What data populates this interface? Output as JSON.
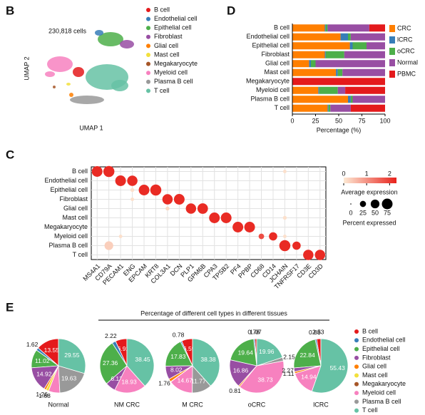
{
  "panel_labels": [
    "B",
    "C",
    "D",
    "E"
  ],
  "chart_data": [
    {
      "type": "scatter",
      "annotation": "230,818 cells",
      "xlabel": "UMAP 1",
      "ylabel": "UMAP 2",
      "series": [
        {
          "name": "B cell",
          "color": "#e41a1c"
        },
        {
          "name": "Endothelial cell",
          "color": "#377eb8"
        },
        {
          "name": "Epithelial cell",
          "color": "#4daf4a"
        },
        {
          "name": "Fibroblast",
          "color": "#984ea3"
        },
        {
          "name": "Glial cell",
          "color": "#ff7f00"
        },
        {
          "name": "Mast cell",
          "color": "#f2e03c"
        },
        {
          "name": "Megakaryocyte",
          "color": "#a65628"
        },
        {
          "name": "Myeloid cell",
          "color": "#f781bf"
        },
        {
          "name": "Plasma B cell",
          "color": "#999999"
        },
        {
          "name": "T cell",
          "color": "#66c2a5"
        }
      ]
    },
    {
      "type": "bar",
      "orientation": "horizontal",
      "stacked": true,
      "xlabel": "Percentage (%)",
      "categories": [
        "B cell",
        "Endothelial cell",
        "Epithelial cell",
        "Fibroblast",
        "Glial cell",
        "Mast cell",
        "Megakaryocyte",
        "Myeloid cell",
        "Plasma B cell",
        "T cell"
      ],
      "xlim": [
        0,
        100
      ],
      "xticks": [
        0,
        25,
        50,
        75,
        100
      ],
      "series": [
        {
          "name": "CRC",
          "color": "#ff7f00",
          "values": [
            35,
            52,
            62,
            35,
            18,
            47,
            0,
            28,
            60,
            38
          ]
        },
        {
          "name": "lCRC",
          "color": "#377eb8",
          "values": [
            1,
            8,
            3,
            1,
            2,
            2,
            0,
            1,
            3,
            1
          ]
        },
        {
          "name": "oCRC",
          "color": "#4daf4a",
          "values": [
            2,
            3,
            15,
            20,
            5,
            5,
            0,
            20,
            2,
            2
          ]
        },
        {
          "name": "Normal",
          "color": "#984ea3",
          "values": [
            45,
            37,
            20,
            44,
            75,
            46,
            0,
            8,
            35,
            22
          ]
        },
        {
          "name": "PBMC",
          "color": "#e41a1c",
          "values": [
            17,
            0,
            0,
            0,
            0,
            0,
            100,
            43,
            0,
            37
          ]
        }
      ]
    },
    {
      "type": "dotplot",
      "x_categories": [
        "MS4A1",
        "CD79A",
        "PECAM1",
        "ENG",
        "EPCAM",
        "KRT8",
        "COL3A1",
        "DCN",
        "PLP1",
        "GPM6B",
        "CPA3",
        "TPSB2",
        "PF4",
        "PPBP",
        "CD68",
        "CD14",
        "JCHAIN",
        "TNFRSF17",
        "CD3E",
        "CD3D"
      ],
      "y_categories": [
        "B cell",
        "Endothelial cell",
        "Epithelial cell",
        "Fibroblast",
        "Glial cell",
        "Mast cell",
        "Megakaryocyte",
        "Myeloid cell",
        "Plasma B cell",
        "T cell"
      ],
      "expression": [
        [
          2.2,
          2.2,
          null,
          null,
          null,
          null,
          null,
          null,
          null,
          null,
          null,
          null,
          null,
          null,
          null,
          null,
          0.1,
          null,
          null,
          null
        ],
        [
          null,
          null,
          2.2,
          2.2,
          null,
          null,
          null,
          null,
          null,
          null,
          null,
          null,
          null,
          null,
          null,
          null,
          null,
          null,
          null,
          null
        ],
        [
          null,
          null,
          null,
          0.1,
          2.2,
          2.2,
          null,
          null,
          null,
          null,
          null,
          null,
          null,
          null,
          null,
          null,
          null,
          null,
          null,
          null
        ],
        [
          null,
          null,
          null,
          0.1,
          null,
          null,
          2.2,
          2.2,
          null,
          null,
          null,
          null,
          null,
          null,
          null,
          null,
          null,
          null,
          null,
          null
        ],
        [
          null,
          null,
          null,
          null,
          null,
          null,
          0.2,
          null,
          2.2,
          2.2,
          null,
          null,
          null,
          null,
          null,
          null,
          null,
          null,
          null,
          null
        ],
        [
          null,
          null,
          null,
          null,
          null,
          null,
          null,
          null,
          null,
          null,
          2.2,
          2.2,
          null,
          null,
          null,
          null,
          0.1,
          null,
          null,
          null
        ],
        [
          null,
          null,
          null,
          null,
          null,
          null,
          null,
          null,
          null,
          null,
          null,
          null,
          2.2,
          2.2,
          null,
          null,
          null,
          null,
          null,
          null
        ],
        [
          null,
          null,
          0.1,
          null,
          null,
          null,
          null,
          null,
          null,
          null,
          null,
          null,
          null,
          null,
          1.8,
          2.2,
          0.1,
          null,
          null,
          null
        ],
        [
          null,
          0.3,
          null,
          null,
          null,
          null,
          null,
          null,
          null,
          null,
          null,
          null,
          null,
          null,
          null,
          null,
          2.2,
          2.2,
          null,
          null
        ],
        [
          null,
          null,
          null,
          null,
          null,
          null,
          null,
          null,
          null,
          null,
          null,
          null,
          null,
          null,
          null,
          null,
          null,
          null,
          2.2,
          2.2
        ]
      ],
      "percent": [
        [
          75,
          80,
          null,
          null,
          null,
          null,
          null,
          null,
          null,
          null,
          null,
          null,
          null,
          null,
          null,
          null,
          8,
          null,
          null,
          null
        ],
        [
          null,
          null,
          75,
          70,
          null,
          null,
          null,
          null,
          null,
          null,
          null,
          null,
          null,
          null,
          null,
          null,
          null,
          null,
          null,
          null
        ],
        [
          null,
          null,
          null,
          10,
          75,
          80,
          null,
          null,
          null,
          null,
          null,
          null,
          null,
          null,
          null,
          null,
          null,
          null,
          null,
          null
        ],
        [
          null,
          null,
          null,
          8,
          null,
          null,
          70,
          75,
          null,
          null,
          null,
          null,
          null,
          null,
          null,
          null,
          null,
          null,
          null,
          null
        ],
        [
          null,
          null,
          null,
          null,
          null,
          null,
          10,
          null,
          70,
          72,
          null,
          null,
          null,
          null,
          null,
          null,
          null,
          null,
          null,
          null
        ],
        [
          null,
          null,
          null,
          null,
          null,
          null,
          null,
          null,
          null,
          null,
          75,
          75,
          null,
          null,
          null,
          null,
          10,
          null,
          null,
          null
        ],
        [
          null,
          null,
          null,
          null,
          null,
          null,
          null,
          null,
          null,
          null,
          null,
          null,
          75,
          75,
          null,
          null,
          null,
          null,
          null,
          null
        ],
        [
          null,
          null,
          8,
          null,
          null,
          null,
          null,
          null,
          null,
          null,
          null,
          null,
          null,
          null,
          20,
          45,
          8,
          null,
          null,
          null
        ],
        [
          null,
          50,
          null,
          null,
          null,
          null,
          null,
          null,
          null,
          null,
          null,
          null,
          null,
          null,
          null,
          null,
          80,
          45,
          null,
          null
        ],
        [
          null,
          null,
          null,
          null,
          null,
          null,
          null,
          null,
          null,
          null,
          null,
          null,
          null,
          null,
          null,
          null,
          null,
          null,
          70,
          70
        ]
      ],
      "color_range": [
        "#fde9d4",
        "#e8221c"
      ],
      "expression_lim": [
        0,
        2.3
      ],
      "expression_title": "Average expression",
      "expression_ticks": [
        0,
        1,
        2
      ],
      "size_title": "Percent expressed",
      "size_ticks": [
        0,
        25,
        50,
        75
      ]
    },
    {
      "type": "pie",
      "title": "Percentage of different cell types in different tissues",
      "categories": [
        "B cell",
        "Endothelial cell",
        "Epithelial cell",
        "Fibroblast",
        "Glial cell",
        "Mast cell",
        "Megakaryocyte",
        "Myeloid cell",
        "Plasma B cell",
        "T cell"
      ],
      "colors": [
        "#e41a1c",
        "#377eb8",
        "#4daf4a",
        "#984ea3",
        "#ff7f00",
        "#f2e03c",
        "#a65628",
        "#f781bf",
        "#999999",
        "#66c2a5"
      ],
      "pies": [
        {
          "name": "Normal",
          "values": [
            13.55,
            1.62,
            11.02,
            14.92,
            1.26,
            1.68,
            0,
            6.77,
            19.63,
            29.55
          ],
          "value_labels": [
            "13.55",
            "1.62",
            "11.02",
            "14.92",
            "1.26",
            "1.68",
            null,
            null,
            "19.63",
            "29.55"
          ]
        },
        {
          "name": "NM CRC",
          "values": [
            6.91,
            2.22,
            27.36,
            6.13,
            0,
            0,
            0,
            18.93,
            0,
            38.45
          ],
          "value_labels": [
            "6.91",
            "2.22",
            "27.36",
            "6.13",
            null,
            null,
            null,
            "18.93",
            null,
            "38.45"
          ]
        },
        {
          "name": "M CRC",
          "values": [
            6.59,
            0.78,
            17.83,
            8.02,
            1.76,
            0.2,
            0,
            14.67,
            11.77,
            38.38
          ],
          "value_labels": [
            "6.59",
            "0.78",
            "17.83",
            "8.02",
            "1.76",
            null,
            null,
            "14.67",
            "11.77",
            "38.38"
          ]
        },
        {
          "name": "oCRC",
          "values": [
            1.07,
            0.78,
            19.64,
            16.86,
            0.81,
            0,
            0,
            38.73,
            2.15,
            19.96
          ],
          "value_labels": [
            "1.07",
            "0.78",
            "19.64",
            "16.86",
            "0.81",
            null,
            null,
            "38.73",
            "2.15",
            "19.96"
          ]
        },
        {
          "name": "lCRC",
          "values": [
            2.53,
            0.88,
            22.84,
            2.27,
            1.11,
            0,
            0,
            14.94,
            0,
            55.43
          ],
          "value_labels": [
            "2.53",
            "0.88",
            "22.84",
            "2.27",
            "1.11",
            null,
            null,
            "14.94",
            null,
            "55.43"
          ]
        }
      ]
    }
  ]
}
